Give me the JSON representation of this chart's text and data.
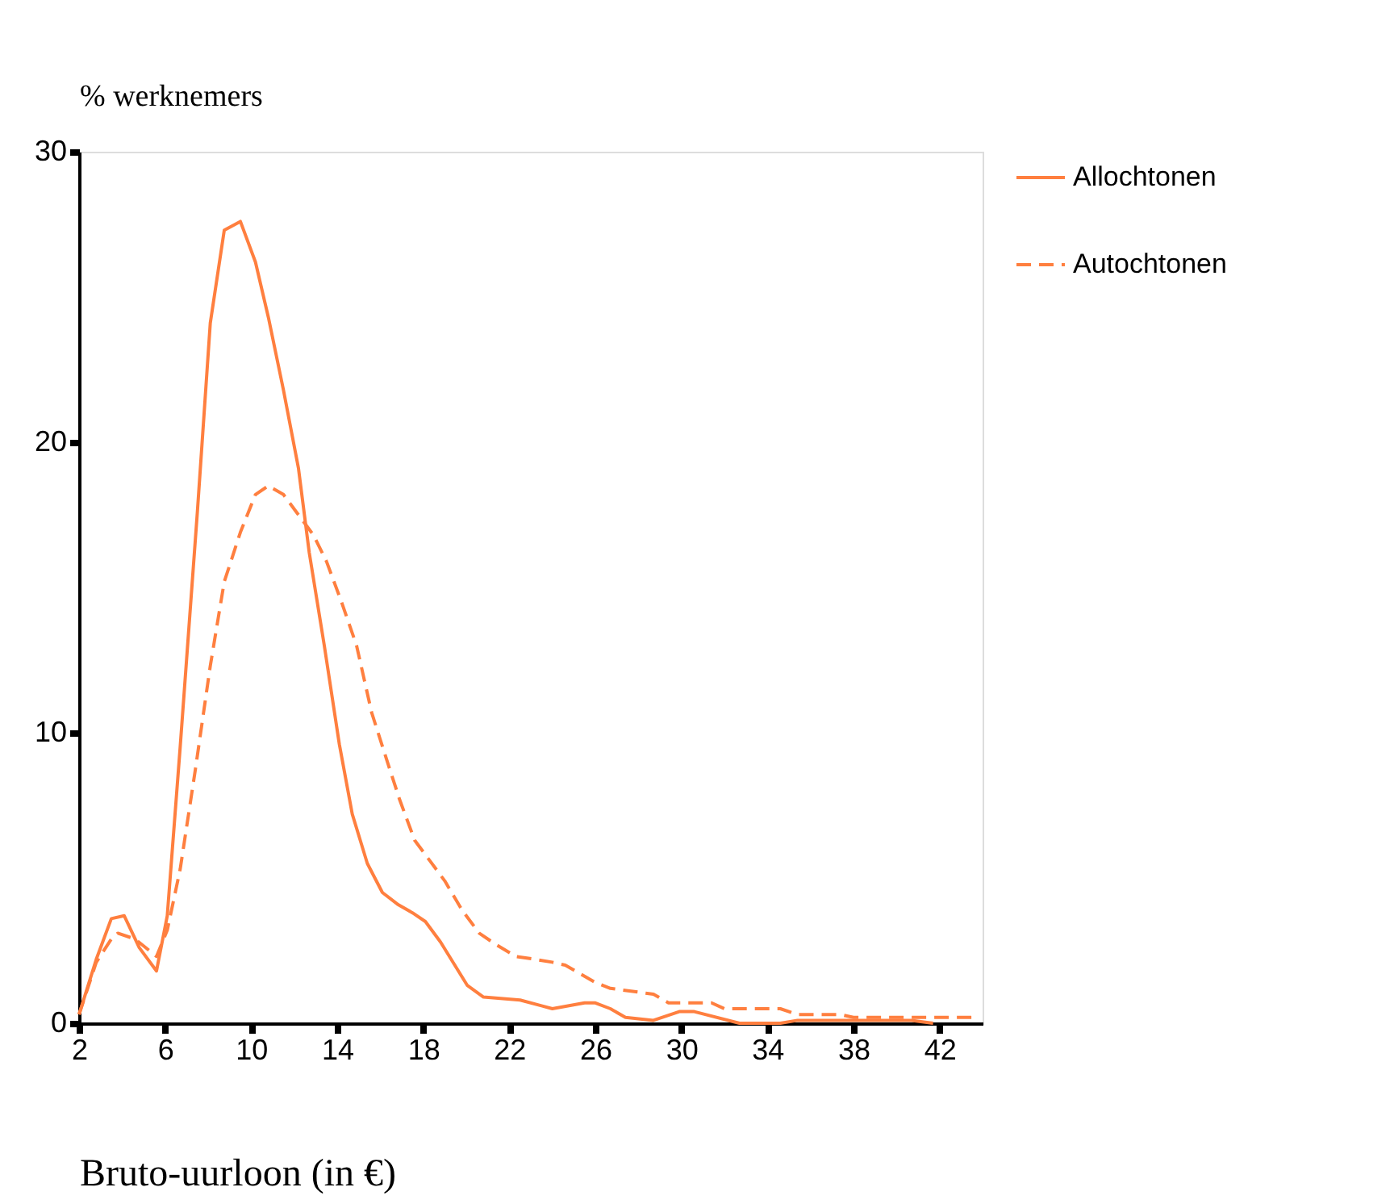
{
  "chart_data": {
    "type": "line",
    "xlabel": "Bruto-uurloon (in €)",
    "ylabel": "% werknemers",
    "xlim": [
      2,
      44
    ],
    "ylim": [
      0,
      30
    ],
    "xticks": [
      2,
      6,
      10,
      14,
      18,
      22,
      26,
      30,
      34,
      38,
      42
    ],
    "yticks": [
      0,
      10,
      20,
      30
    ],
    "grid": false,
    "legend": "right",
    "marker": "none",
    "series": [
      {
        "name": "Allochtonen",
        "color": "#ff7f3f",
        "line_style": "solid",
        "x": [
          2.0,
          2.8,
          3.5,
          4.1,
          4.8,
          5.6,
          6.1,
          6.7,
          7.5,
          8.1,
          8.75,
          9.5,
          10.2,
          10.8,
          11.5,
          12.2,
          12.7,
          13.4,
          14.1,
          14.7,
          15.4,
          16.1,
          16.8,
          17.5,
          18.1,
          18.8,
          20.05,
          20.8,
          22.5,
          23.5,
          24.0,
          25.5,
          26.0,
          26.7,
          27.4,
          28.7,
          29.9,
          30.6,
          32.7,
          34.6,
          35.4,
          37.9,
          40.7,
          41.7
        ],
        "values": [
          0.3,
          2.2,
          3.6,
          3.7,
          2.6,
          1.8,
          3.7,
          9.5,
          17.6,
          24.1,
          27.3,
          27.6,
          26.2,
          24.3,
          21.8,
          19.1,
          16.2,
          13.0,
          9.6,
          7.2,
          5.5,
          4.5,
          4.1,
          3.8,
          3.5,
          2.8,
          1.3,
          0.9,
          0.8,
          0.6,
          0.5,
          0.7,
          0.7,
          0.5,
          0.2,
          0.1,
          0.4,
          0.4,
          0.0,
          0.0,
          0.1,
          0.1,
          0.1,
          0.0
        ]
      },
      {
        "name": "Autochtonen",
        "color": "#ff7f3f",
        "line_style": "dashed",
        "x": [
          2.0,
          2.8,
          3.5,
          3.8,
          4.6,
          5.6,
          6.1,
          6.7,
          7.4,
          8.1,
          8.75,
          9.5,
          10.2,
          10.8,
          11.5,
          12.2,
          12.9,
          13.5,
          14.2,
          14.9,
          15.6,
          16.2,
          16.9,
          17.6,
          18.3,
          19.0,
          19.8,
          20.6,
          21.4,
          22.3,
          23.2,
          24.0,
          24.6,
          26.0,
          26.7,
          28.7,
          29.4,
          31.4,
          32.0,
          34.6,
          35.4,
          37.4,
          38.0,
          40.7,
          41.7,
          43.6
        ],
        "values": [
          0.3,
          2.1,
          2.9,
          3.1,
          2.9,
          2.3,
          3.2,
          5.3,
          8.7,
          12.3,
          15.2,
          16.9,
          18.2,
          18.5,
          18.2,
          17.5,
          16.8,
          15.9,
          14.5,
          13.0,
          10.7,
          9.3,
          7.7,
          6.3,
          5.6,
          4.9,
          3.9,
          3.1,
          2.7,
          2.3,
          2.2,
          2.1,
          2.0,
          1.4,
          1.2,
          1.0,
          0.7,
          0.7,
          0.5,
          0.5,
          0.3,
          0.3,
          0.2,
          0.2,
          0.2,
          0.2
        ]
      }
    ]
  }
}
